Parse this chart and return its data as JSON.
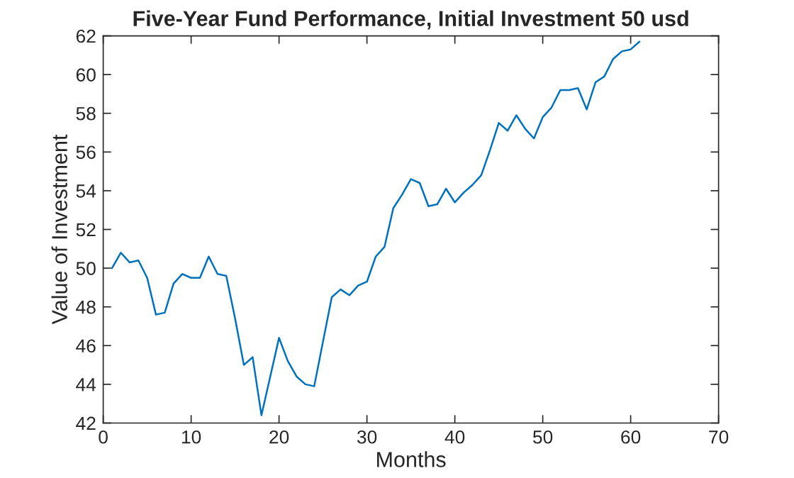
{
  "chart_data": {
    "type": "line",
    "title": "Five-Year Fund Performance, Initial Investment 50 usd",
    "xlabel": "Months",
    "ylabel": "Value of Investment",
    "x": [
      1,
      2,
      3,
      4,
      5,
      6,
      7,
      8,
      9,
      10,
      11,
      12,
      13,
      14,
      15,
      16,
      17,
      18,
      19,
      20,
      21,
      22,
      23,
      24,
      25,
      26,
      27,
      28,
      29,
      30,
      31,
      32,
      33,
      34,
      35,
      36,
      37,
      38,
      39,
      40,
      41,
      42,
      43,
      44,
      45,
      46,
      47,
      48,
      49,
      50,
      51,
      52,
      53,
      54,
      55,
      56,
      57,
      58,
      59,
      60,
      61
    ],
    "series": [
      {
        "color": "#0072bd",
        "values": [
          50.0,
          50.8,
          50.3,
          50.4,
          49.5,
          47.6,
          47.7,
          49.2,
          49.7,
          49.5,
          49.5,
          50.6,
          49.7,
          49.6,
          47.4,
          45.0,
          45.4,
          42.4,
          44.4,
          46.4,
          45.2,
          44.4,
          44.0,
          43.9,
          46.2,
          48.5,
          48.9,
          48.6,
          49.1,
          49.3,
          50.6,
          51.1,
          53.1,
          53.8,
          54.6,
          54.4,
          53.2,
          53.3,
          54.1,
          53.4,
          53.9,
          54.3,
          54.8,
          56.1,
          57.5,
          57.1,
          57.9,
          57.2,
          56.7,
          57.8,
          58.3,
          59.2,
          59.2,
          59.3,
          58.2,
          59.6,
          59.9,
          60.8,
          61.2,
          61.3,
          61.7
        ]
      }
    ],
    "xlim": [
      0,
      70
    ],
    "xticks": [
      0,
      10,
      20,
      30,
      40,
      50,
      60,
      70
    ],
    "ylim": [
      42,
      62
    ],
    "yticks": [
      42,
      44,
      46,
      48,
      50,
      52,
      54,
      56,
      58,
      60,
      62
    ],
    "grid": false,
    "marker": "none",
    "line_style": "solid"
  }
}
